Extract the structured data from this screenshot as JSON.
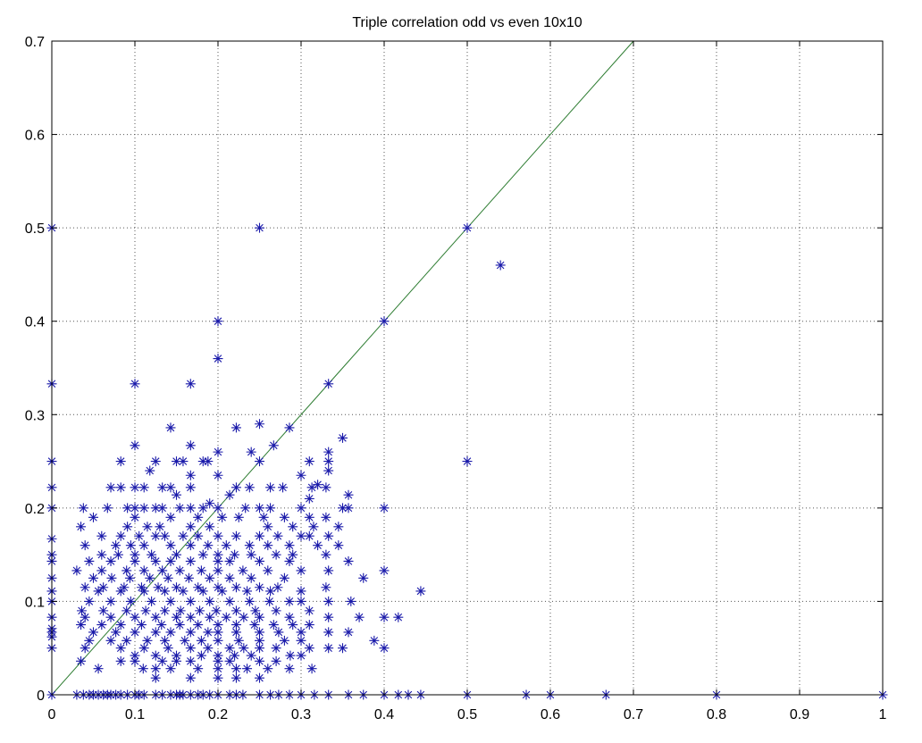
{
  "chart_data": {
    "type": "scatter",
    "title": "Triple correlation odd vs even 10x10",
    "xlabel": "",
    "ylabel": "",
    "xlim": [
      0,
      1
    ],
    "ylim": [
      0,
      0.7
    ],
    "xticks": [
      "0",
      "0.1",
      "0.2",
      "0.3",
      "0.4",
      "0.5",
      "0.6",
      "0.7",
      "0.8",
      "0.9",
      "1"
    ],
    "yticks": [
      "0",
      "0.1",
      "0.2",
      "0.3",
      "0.4",
      "0.5",
      "0.6",
      "0.7"
    ],
    "grid": true,
    "marker": "asterisk",
    "colors": {
      "points": "#1a1aaa",
      "reference_line": "#2e7d32",
      "grid": "#555555"
    },
    "reference_line": {
      "x": [
        0,
        0.7
      ],
      "y": [
        0,
        0.7
      ]
    },
    "points": [
      [
        0,
        0.5
      ],
      [
        0,
        0.333
      ],
      [
        0,
        0.25
      ],
      [
        0,
        0.222
      ],
      [
        0,
        0.2
      ],
      [
        0,
        0.167
      ],
      [
        0,
        0.15
      ],
      [
        0,
        0.143
      ],
      [
        0,
        0.125
      ],
      [
        0,
        0.111
      ],
      [
        0,
        0.1
      ],
      [
        0,
        0.083
      ],
      [
        0,
        0.071
      ],
      [
        0,
        0.067
      ],
      [
        0,
        0.062
      ],
      [
        0,
        0.05
      ],
      [
        0,
        0
      ],
      [
        0.25,
        0.5
      ],
      [
        0.5,
        0.5
      ],
      [
        0.54,
        0.46
      ],
      [
        0.2,
        0.4
      ],
      [
        0.4,
        0.4
      ],
      [
        0.2,
        0.36
      ],
      [
        0.1,
        0.333
      ],
      [
        0.167,
        0.333
      ],
      [
        0.333,
        0.333
      ],
      [
        0.25,
        0.29
      ],
      [
        0.143,
        0.286
      ],
      [
        0.222,
        0.286
      ],
      [
        0.286,
        0.286
      ],
      [
        0.35,
        0.275
      ],
      [
        0.1,
        0.267
      ],
      [
        0.167,
        0.267
      ],
      [
        0.267,
        0.267
      ],
      [
        0.2,
        0.26
      ],
      [
        0.333,
        0.26
      ],
      [
        0.24,
        0.26
      ],
      [
        0.083,
        0.25
      ],
      [
        0.125,
        0.25
      ],
      [
        0.15,
        0.25
      ],
      [
        0.158,
        0.25
      ],
      [
        0.182,
        0.25
      ],
      [
        0.188,
        0.25
      ],
      [
        0.25,
        0.25
      ],
      [
        0.31,
        0.25
      ],
      [
        0.333,
        0.25
      ],
      [
        0.5,
        0.25
      ],
      [
        0.118,
        0.24
      ],
      [
        0.333,
        0.24
      ],
      [
        0.167,
        0.235
      ],
      [
        0.2,
        0.235
      ],
      [
        0.3,
        0.235
      ],
      [
        0.32,
        0.225
      ],
      [
        0.071,
        0.222
      ],
      [
        0.083,
        0.222
      ],
      [
        0.1,
        0.222
      ],
      [
        0.111,
        0.222
      ],
      [
        0.133,
        0.222
      ],
      [
        0.143,
        0.222
      ],
      [
        0.167,
        0.222
      ],
      [
        0.222,
        0.222
      ],
      [
        0.238,
        0.222
      ],
      [
        0.263,
        0.222
      ],
      [
        0.278,
        0.222
      ],
      [
        0.313,
        0.222
      ],
      [
        0.33,
        0.222
      ],
      [
        0.31,
        0.21
      ],
      [
        0.357,
        0.214
      ],
      [
        0.15,
        0.214
      ],
      [
        0.214,
        0.214
      ],
      [
        0.19,
        0.205
      ],
      [
        0.038,
        0.2
      ],
      [
        0.067,
        0.2
      ],
      [
        0.091,
        0.2
      ],
      [
        0.1,
        0.2
      ],
      [
        0.111,
        0.2
      ],
      [
        0.125,
        0.2
      ],
      [
        0.133,
        0.2
      ],
      [
        0.154,
        0.2
      ],
      [
        0.167,
        0.2
      ],
      [
        0.182,
        0.2
      ],
      [
        0.2,
        0.2
      ],
      [
        0.233,
        0.2
      ],
      [
        0.25,
        0.2
      ],
      [
        0.263,
        0.2
      ],
      [
        0.3,
        0.2
      ],
      [
        0.35,
        0.2
      ],
      [
        0.357,
        0.2
      ],
      [
        0.4,
        0.2
      ],
      [
        0.05,
        0.19
      ],
      [
        0.1,
        0.19
      ],
      [
        0.143,
        0.19
      ],
      [
        0.176,
        0.19
      ],
      [
        0.205,
        0.19
      ],
      [
        0.225,
        0.19
      ],
      [
        0.255,
        0.19
      ],
      [
        0.28,
        0.19
      ],
      [
        0.31,
        0.19
      ],
      [
        0.33,
        0.19
      ],
      [
        0.035,
        0.18
      ],
      [
        0.091,
        0.18
      ],
      [
        0.115,
        0.18
      ],
      [
        0.13,
        0.18
      ],
      [
        0.167,
        0.18
      ],
      [
        0.19,
        0.18
      ],
      [
        0.26,
        0.18
      ],
      [
        0.29,
        0.18
      ],
      [
        0.315,
        0.18
      ],
      [
        0.345,
        0.18
      ],
      [
        0.06,
        0.17
      ],
      [
        0.083,
        0.17
      ],
      [
        0.105,
        0.17
      ],
      [
        0.125,
        0.17
      ],
      [
        0.136,
        0.17
      ],
      [
        0.158,
        0.17
      ],
      [
        0.176,
        0.17
      ],
      [
        0.2,
        0.17
      ],
      [
        0.222,
        0.17
      ],
      [
        0.25,
        0.17
      ],
      [
        0.272,
        0.17
      ],
      [
        0.3,
        0.17
      ],
      [
        0.31,
        0.17
      ],
      [
        0.333,
        0.17
      ],
      [
        0.04,
        0.16
      ],
      [
        0.077,
        0.16
      ],
      [
        0.095,
        0.16
      ],
      [
        0.111,
        0.16
      ],
      [
        0.143,
        0.16
      ],
      [
        0.167,
        0.16
      ],
      [
        0.188,
        0.16
      ],
      [
        0.21,
        0.16
      ],
      [
        0.238,
        0.16
      ],
      [
        0.26,
        0.16
      ],
      [
        0.286,
        0.16
      ],
      [
        0.32,
        0.16
      ],
      [
        0.345,
        0.16
      ],
      [
        0.06,
        0.15
      ],
      [
        0.08,
        0.15
      ],
      [
        0.1,
        0.15
      ],
      [
        0.12,
        0.15
      ],
      [
        0.15,
        0.15
      ],
      [
        0.182,
        0.15
      ],
      [
        0.2,
        0.15
      ],
      [
        0.22,
        0.15
      ],
      [
        0.24,
        0.15
      ],
      [
        0.27,
        0.15
      ],
      [
        0.29,
        0.15
      ],
      [
        0.33,
        0.15
      ],
      [
        0.045,
        0.143
      ],
      [
        0.071,
        0.143
      ],
      [
        0.1,
        0.143
      ],
      [
        0.125,
        0.143
      ],
      [
        0.143,
        0.143
      ],
      [
        0.167,
        0.143
      ],
      [
        0.2,
        0.143
      ],
      [
        0.214,
        0.143
      ],
      [
        0.25,
        0.143
      ],
      [
        0.286,
        0.143
      ],
      [
        0.357,
        0.143
      ],
      [
        0.03,
        0.133
      ],
      [
        0.06,
        0.133
      ],
      [
        0.09,
        0.133
      ],
      [
        0.111,
        0.133
      ],
      [
        0.133,
        0.133
      ],
      [
        0.154,
        0.133
      ],
      [
        0.18,
        0.133
      ],
      [
        0.2,
        0.133
      ],
      [
        0.23,
        0.133
      ],
      [
        0.26,
        0.133
      ],
      [
        0.3,
        0.133
      ],
      [
        0.333,
        0.133
      ],
      [
        0.4,
        0.133
      ],
      [
        0.05,
        0.125
      ],
      [
        0.072,
        0.125
      ],
      [
        0.094,
        0.125
      ],
      [
        0.118,
        0.125
      ],
      [
        0.14,
        0.125
      ],
      [
        0.165,
        0.125
      ],
      [
        0.19,
        0.125
      ],
      [
        0.214,
        0.125
      ],
      [
        0.24,
        0.125
      ],
      [
        0.28,
        0.125
      ],
      [
        0.375,
        0.125
      ],
      [
        0.04,
        0.115
      ],
      [
        0.062,
        0.115
      ],
      [
        0.087,
        0.115
      ],
      [
        0.108,
        0.115
      ],
      [
        0.128,
        0.115
      ],
      [
        0.15,
        0.115
      ],
      [
        0.176,
        0.115
      ],
      [
        0.2,
        0.115
      ],
      [
        0.222,
        0.115
      ],
      [
        0.25,
        0.115
      ],
      [
        0.272,
        0.115
      ],
      [
        0.33,
        0.115
      ],
      [
        0.056,
        0.111
      ],
      [
        0.083,
        0.111
      ],
      [
        0.111,
        0.111
      ],
      [
        0.136,
        0.111
      ],
      [
        0.158,
        0.111
      ],
      [
        0.182,
        0.111
      ],
      [
        0.205,
        0.111
      ],
      [
        0.235,
        0.111
      ],
      [
        0.263,
        0.111
      ],
      [
        0.3,
        0.111
      ],
      [
        0.444,
        0.111
      ],
      [
        0.045,
        0.1
      ],
      [
        0.071,
        0.1
      ],
      [
        0.095,
        0.1
      ],
      [
        0.12,
        0.1
      ],
      [
        0.143,
        0.1
      ],
      [
        0.167,
        0.1
      ],
      [
        0.19,
        0.1
      ],
      [
        0.214,
        0.1
      ],
      [
        0.238,
        0.1
      ],
      [
        0.262,
        0.1
      ],
      [
        0.286,
        0.1
      ],
      [
        0.3,
        0.1
      ],
      [
        0.333,
        0.1
      ],
      [
        0.36,
        0.1
      ],
      [
        0.036,
        0.09
      ],
      [
        0.062,
        0.09
      ],
      [
        0.09,
        0.09
      ],
      [
        0.113,
        0.09
      ],
      [
        0.136,
        0.09
      ],
      [
        0.155,
        0.09
      ],
      [
        0.178,
        0.09
      ],
      [
        0.198,
        0.09
      ],
      [
        0.222,
        0.09
      ],
      [
        0.245,
        0.09
      ],
      [
        0.27,
        0.09
      ],
      [
        0.31,
        0.09
      ],
      [
        0.04,
        0.083
      ],
      [
        0.071,
        0.083
      ],
      [
        0.1,
        0.083
      ],
      [
        0.125,
        0.083
      ],
      [
        0.15,
        0.083
      ],
      [
        0.167,
        0.083
      ],
      [
        0.19,
        0.083
      ],
      [
        0.21,
        0.083
      ],
      [
        0.231,
        0.083
      ],
      [
        0.25,
        0.083
      ],
      [
        0.286,
        0.083
      ],
      [
        0.333,
        0.083
      ],
      [
        0.37,
        0.083
      ],
      [
        0.4,
        0.083
      ],
      [
        0.417,
        0.083
      ],
      [
        0.035,
        0.075
      ],
      [
        0.06,
        0.075
      ],
      [
        0.083,
        0.075
      ],
      [
        0.108,
        0.075
      ],
      [
        0.132,
        0.075
      ],
      [
        0.154,
        0.075
      ],
      [
        0.176,
        0.075
      ],
      [
        0.2,
        0.075
      ],
      [
        0.222,
        0.075
      ],
      [
        0.244,
        0.075
      ],
      [
        0.267,
        0.075
      ],
      [
        0.29,
        0.075
      ],
      [
        0.31,
        0.075
      ],
      [
        0.05,
        0.067
      ],
      [
        0.077,
        0.067
      ],
      [
        0.1,
        0.067
      ],
      [
        0.125,
        0.067
      ],
      [
        0.143,
        0.067
      ],
      [
        0.167,
        0.067
      ],
      [
        0.188,
        0.067
      ],
      [
        0.2,
        0.067
      ],
      [
        0.222,
        0.067
      ],
      [
        0.25,
        0.067
      ],
      [
        0.273,
        0.067
      ],
      [
        0.3,
        0.067
      ],
      [
        0.333,
        0.067
      ],
      [
        0.357,
        0.067
      ],
      [
        0.045,
        0.058
      ],
      [
        0.071,
        0.058
      ],
      [
        0.09,
        0.058
      ],
      [
        0.115,
        0.058
      ],
      [
        0.136,
        0.058
      ],
      [
        0.16,
        0.058
      ],
      [
        0.18,
        0.058
      ],
      [
        0.2,
        0.058
      ],
      [
        0.225,
        0.058
      ],
      [
        0.25,
        0.058
      ],
      [
        0.28,
        0.058
      ],
      [
        0.3,
        0.058
      ],
      [
        0.388,
        0.058
      ],
      [
        0.04,
        0.05
      ],
      [
        0.083,
        0.05
      ],
      [
        0.111,
        0.05
      ],
      [
        0.14,
        0.05
      ],
      [
        0.167,
        0.05
      ],
      [
        0.188,
        0.05
      ],
      [
        0.214,
        0.05
      ],
      [
        0.231,
        0.05
      ],
      [
        0.25,
        0.05
      ],
      [
        0.27,
        0.05
      ],
      [
        0.31,
        0.05
      ],
      [
        0.333,
        0.05
      ],
      [
        0.35,
        0.05
      ],
      [
        0.4,
        0.05
      ],
      [
        0.1,
        0.042
      ],
      [
        0.125,
        0.042
      ],
      [
        0.15,
        0.042
      ],
      [
        0.18,
        0.042
      ],
      [
        0.2,
        0.042
      ],
      [
        0.22,
        0.042
      ],
      [
        0.24,
        0.042
      ],
      [
        0.287,
        0.042
      ],
      [
        0.3,
        0.042
      ],
      [
        0.035,
        0.036
      ],
      [
        0.083,
        0.036
      ],
      [
        0.1,
        0.036
      ],
      [
        0.133,
        0.036
      ],
      [
        0.15,
        0.036
      ],
      [
        0.167,
        0.036
      ],
      [
        0.2,
        0.036
      ],
      [
        0.214,
        0.036
      ],
      [
        0.25,
        0.036
      ],
      [
        0.27,
        0.036
      ],
      [
        0.056,
        0.028
      ],
      [
        0.11,
        0.028
      ],
      [
        0.125,
        0.028
      ],
      [
        0.143,
        0.028
      ],
      [
        0.176,
        0.028
      ],
      [
        0.2,
        0.028
      ],
      [
        0.222,
        0.028
      ],
      [
        0.235,
        0.028
      ],
      [
        0.26,
        0.028
      ],
      [
        0.286,
        0.028
      ],
      [
        0.313,
        0.028
      ],
      [
        0.125,
        0.018
      ],
      [
        0.167,
        0.018
      ],
      [
        0.2,
        0.018
      ],
      [
        0.222,
        0.018
      ],
      [
        0.25,
        0.018
      ],
      [
        0.03,
        0
      ],
      [
        0.038,
        0
      ],
      [
        0.045,
        0
      ],
      [
        0.05,
        0
      ],
      [
        0.056,
        0
      ],
      [
        0.062,
        0
      ],
      [
        0.067,
        0
      ],
      [
        0.071,
        0
      ],
      [
        0.077,
        0
      ],
      [
        0.083,
        0
      ],
      [
        0.091,
        0
      ],
      [
        0.1,
        0
      ],
      [
        0.105,
        0
      ],
      [
        0.111,
        0
      ],
      [
        0.125,
        0
      ],
      [
        0.133,
        0
      ],
      [
        0.143,
        0
      ],
      [
        0.15,
        0
      ],
      [
        0.154,
        0
      ],
      [
        0.158,
        0
      ],
      [
        0.167,
        0
      ],
      [
        0.176,
        0
      ],
      [
        0.182,
        0
      ],
      [
        0.19,
        0
      ],
      [
        0.2,
        0
      ],
      [
        0.214,
        0
      ],
      [
        0.222,
        0
      ],
      [
        0.23,
        0
      ],
      [
        0.25,
        0
      ],
      [
        0.263,
        0
      ],
      [
        0.273,
        0
      ],
      [
        0.286,
        0
      ],
      [
        0.3,
        0
      ],
      [
        0.316,
        0
      ],
      [
        0.333,
        0
      ],
      [
        0.357,
        0
      ],
      [
        0.375,
        0
      ],
      [
        0.4,
        0
      ],
      [
        0.417,
        0
      ],
      [
        0.429,
        0
      ],
      [
        0.444,
        0
      ],
      [
        0.5,
        0
      ],
      [
        0.571,
        0
      ],
      [
        0.6,
        0
      ],
      [
        0.667,
        0
      ],
      [
        0.8,
        0
      ],
      [
        1,
        0
      ]
    ]
  }
}
